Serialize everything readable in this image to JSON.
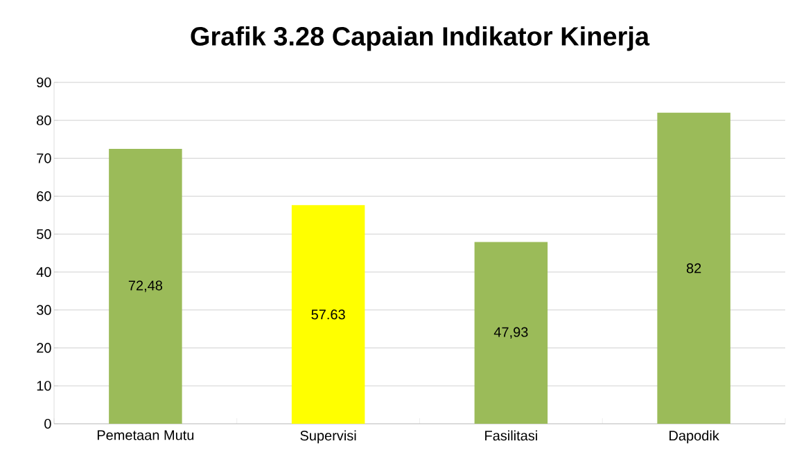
{
  "chart_data": {
    "type": "bar",
    "title": "Grafik 3.28 Capaian Indikator Kinerja",
    "categories": [
      "Pemetaan Mutu",
      "Supervisi",
      "Fasilitasi",
      "Dapodik"
    ],
    "values": [
      72.48,
      57.63,
      47.93,
      82
    ],
    "colors": [
      "#9bbb59",
      "#ffff00",
      "#9bbb59",
      "#9bbb59"
    ],
    "value_labels": [
      "72,48",
      "57.63",
      "47,93",
      "82"
    ],
    "ylim": [
      0,
      90
    ],
    "yticks": [
      0,
      10,
      20,
      30,
      40,
      50,
      60,
      70,
      80,
      90
    ],
    "grid": "y"
  }
}
